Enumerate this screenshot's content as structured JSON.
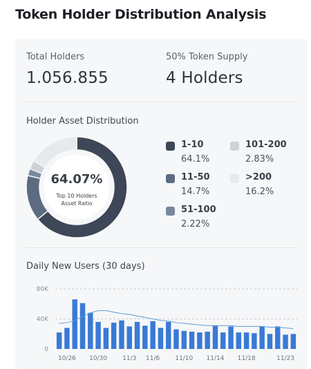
{
  "page": {
    "title": "Token Holder Distribution Analysis"
  },
  "stats": {
    "total_holders": {
      "label": "Total Holders",
      "value": "1.056.855"
    },
    "supply_holders": {
      "label": "50% Token Supply",
      "value": "4 Holders"
    }
  },
  "distribution": {
    "title": "Holder Asset Distribution",
    "center_value": "64.07%",
    "center_label": "Top 10 Holders Asset Ratio",
    "segments": [
      {
        "name": "1-10",
        "pct": "64.1%",
        "value": 64.1,
        "color": "#3d4757"
      },
      {
        "name": "11-50",
        "pct": "14.7%",
        "value": 14.7,
        "color": "#5c6b80"
      },
      {
        "name": "51-100",
        "pct": "2.22%",
        "value": 2.22,
        "color": "#7a899c"
      },
      {
        "name": "101-200",
        "pct": "2.83%",
        "value": 2.83,
        "color": "#cdd2d9"
      },
      {
        "name": ">200",
        "pct": "16.2%",
        "value": 16.2,
        "color": "#e6e9ed"
      }
    ]
  },
  "daily": {
    "title": "Daily New Users (30 days)"
  },
  "chart_data": {
    "type": "bar",
    "ylim": [
      0,
      80000
    ],
    "y_ticks": [
      0,
      40000,
      80000
    ],
    "y_tick_labels": [
      "0",
      "40K",
      "80K"
    ],
    "x_tick_labels": [
      "10/26",
      "10/30",
      "11/3",
      "11/6",
      "11/10",
      "11/14",
      "11/18",
      "11/23"
    ],
    "x_tick_indices": [
      1,
      5,
      9,
      12,
      16,
      20,
      24,
      29
    ],
    "bar_color": "#3a7ad5",
    "line_color": "#5b9be0",
    "series": [
      {
        "type": "bar",
        "values": [
          22000,
          28000,
          66000,
          61000,
          48000,
          36000,
          28000,
          35000,
          38000,
          30000,
          36000,
          31000,
          37000,
          28000,
          36000,
          26000,
          24000,
          23000,
          22000,
          23000,
          31000,
          22000,
          30000,
          22000,
          22000,
          21000,
          30000,
          20000,
          30000,
          19000,
          20000
        ]
      },
      {
        "type": "line",
        "values": [
          34000,
          35000,
          38000,
          43000,
          48000,
          51000,
          51000,
          49000,
          47000,
          46000,
          44000,
          42000,
          40000,
          38000,
          37000,
          35000,
          34000,
          33000,
          32000,
          31000,
          31000,
          31000,
          31000,
          30000,
          30000,
          30000,
          30000,
          29000,
          29000,
          28000,
          27000
        ]
      }
    ]
  }
}
